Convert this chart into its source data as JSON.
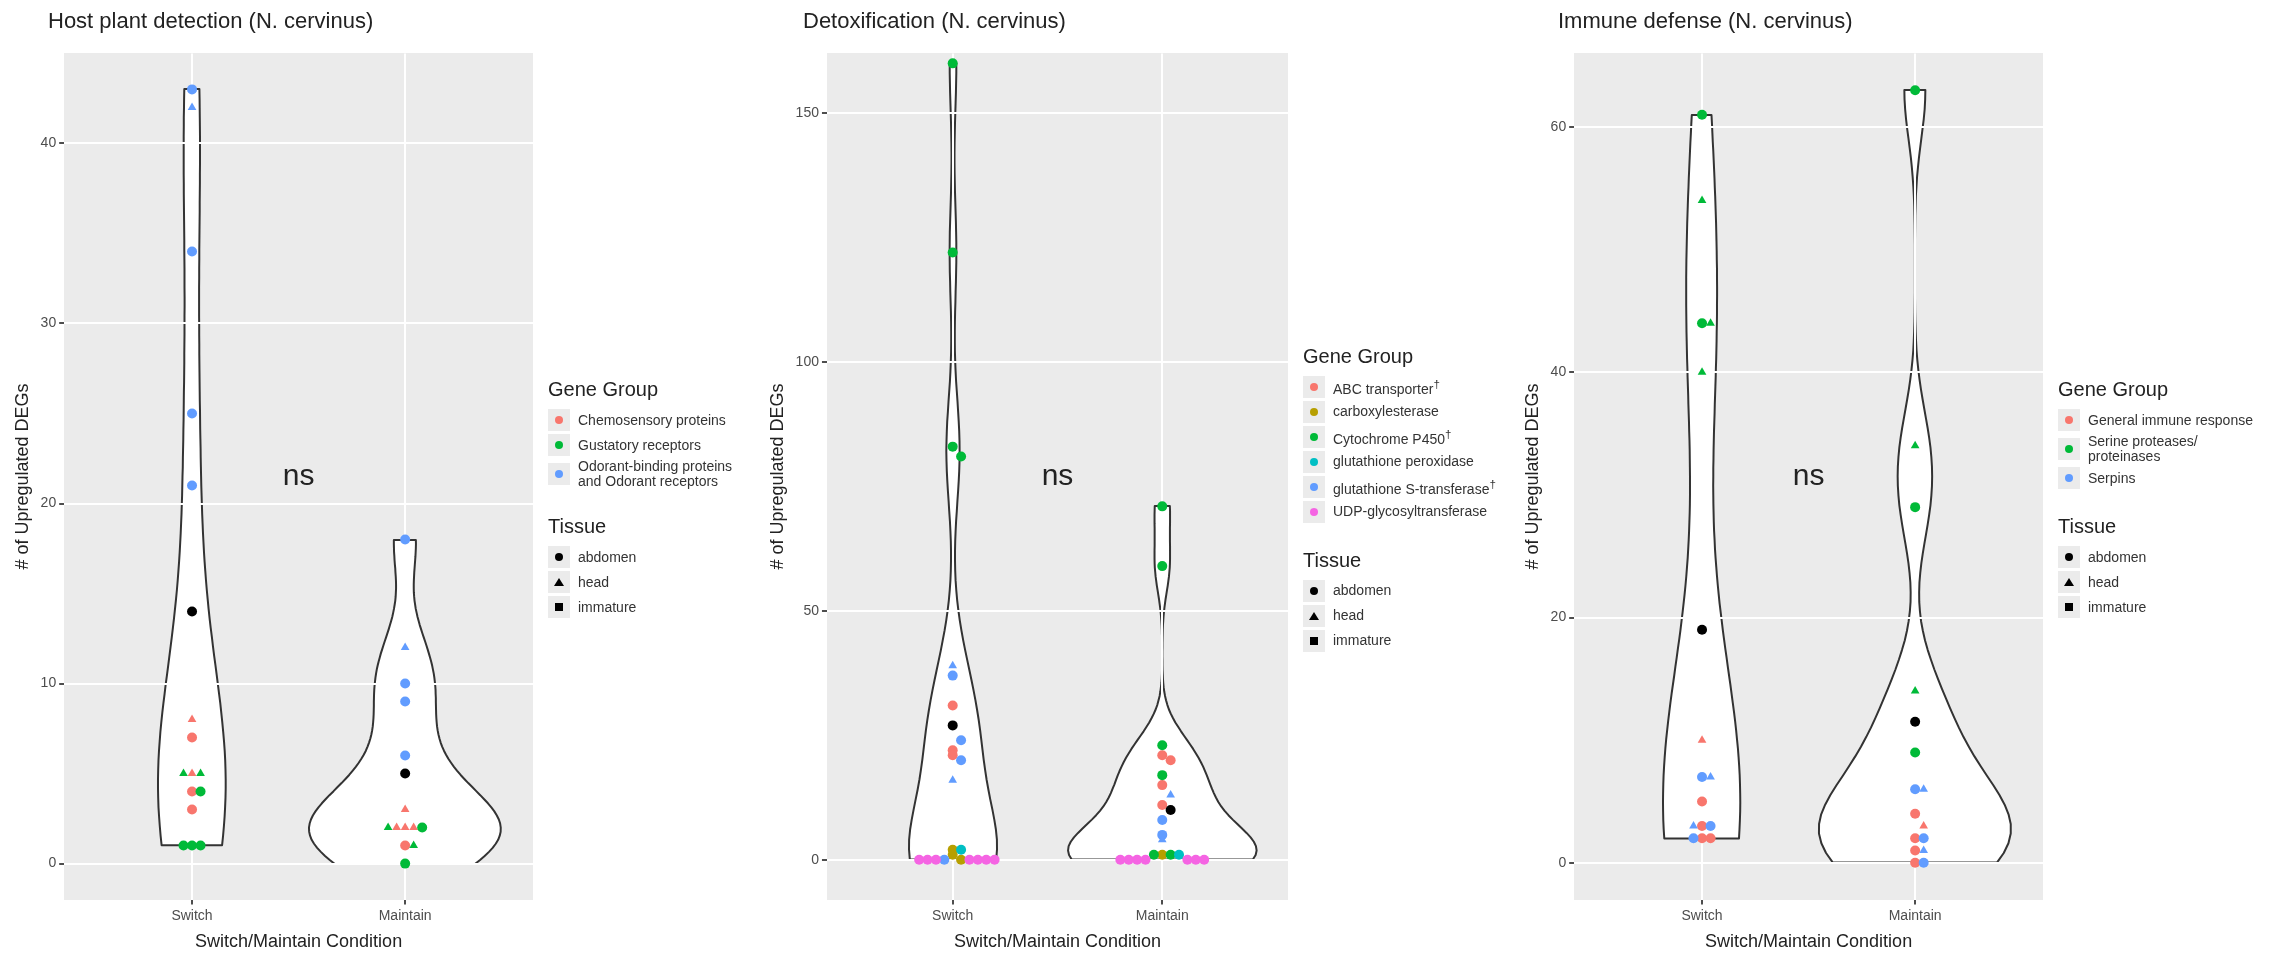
{
  "chart_data": [
    {
      "type": "scatter",
      "title": "Host plant detection (N. cervinus)",
      "xlabel": "Switch/Maintain Condition",
      "ylabel": "# of Upregulated DEGs",
      "legend_title": "Gene Group",
      "legend": "right",
      "grid": true,
      "marker": "circle",
      "categories": [
        "Switch",
        "Maintain"
      ],
      "ylim": [
        -2,
        45
      ],
      "yticks": [
        0,
        10,
        20,
        30,
        40
      ],
      "annotations": [
        "ns",
        "Tissue"
      ],
      "series": [
        {
          "name": "Chemosensory proteins",
          "color": "#f8766d",
          "x": [
            "Switch",
            "Switch",
            "Switch",
            "Maintain"
          ],
          "values": [
            7,
            4,
            3,
            1
          ]
        },
        {
          "color": "#f8766d",
          "marker": "triangle",
          "x": [
            "Switch",
            "Switch",
            "Maintain",
            "Maintain",
            "Maintain",
            "Maintain"
          ],
          "values": [
            8,
            5,
            3,
            2,
            2,
            2
          ]
        },
        {
          "name": "Gustatory receptors",
          "color": "#00ba38",
          "x": [
            "Switch",
            "Switch",
            "Switch",
            "Switch",
            "Maintain",
            "Maintain"
          ],
          "values": [
            4,
            1,
            1,
            1,
            2,
            0
          ]
        },
        {
          "color": "#00ba38",
          "marker": "triangle",
          "x": [
            "Switch",
            "Switch",
            "Maintain",
            "Maintain"
          ],
          "values": [
            5,
            5,
            2,
            1
          ]
        },
        {
          "name": "Odorant-binding proteins and Odorant receptors",
          "color": "#619cff",
          "x": [
            "Switch",
            "Switch",
            "Switch",
            "Switch",
            "Maintain",
            "Maintain",
            "Maintain",
            "Maintain"
          ],
          "values": [
            43,
            34,
            25,
            21,
            18,
            10,
            9,
            6
          ]
        },
        {
          "color": "#619cff",
          "marker": "triangle",
          "x": [
            "Switch",
            "Maintain"
          ],
          "values": [
            42,
            12
          ]
        },
        {
          "color": "#000000",
          "x": [
            "Switch",
            "Maintain"
          ],
          "values": [
            14,
            5
          ]
        },
        {
          "name": "abdomen",
          "color": "#000000",
          "values": [
            null,
            null
          ]
        },
        {
          "name": "head",
          "color": "#000000",
          "marker": "triangle",
          "values": [
            null,
            null
          ]
        },
        {
          "name": "immature",
          "color": "#000000",
          "marker": "square",
          "values": [
            null,
            null
          ]
        }
      ]
    },
    {
      "type": "scatter",
      "title": "Detoxification (N. cervinus)",
      "xlabel": "Switch/Maintain Condition",
      "ylabel": "# of Upregulated DEGs",
      "legend_title": "Gene Group",
      "legend": "right",
      "grid": true,
      "marker": "circle",
      "categories": [
        "Switch",
        "Maintain"
      ],
      "ylim": [
        -8,
        162
      ],
      "yticks": [
        0,
        50,
        100,
        150
      ],
      "annotations": [
        "ns",
        "Tissue"
      ],
      "series": [
        {
          "name": "ABC transporter$^{†}$",
          "color": "#f8766d",
          "x": [
            "Switch",
            "Switch",
            "Switch",
            "Maintain",
            "Maintain",
            "Maintain",
            "Maintain"
          ],
          "values": [
            31,
            22,
            21,
            21,
            20,
            15,
            11
          ]
        },
        {
          "name": "carboxylesterase",
          "color": "#b79f00",
          "x": [
            "Switch",
            "Switch",
            "Switch",
            "Maintain"
          ],
          "values": [
            1,
            0,
            2,
            1
          ]
        },
        {
          "name": "Cytochrome P450$^{†}$",
          "color": "#00ba38",
          "x": [
            "Switch",
            "Switch",
            "Switch",
            "Switch",
            "Maintain",
            "Maintain",
            "Maintain",
            "Maintain",
            "Maintain",
            "Maintain"
          ],
          "values": [
            160,
            122,
            83,
            81,
            71,
            59,
            23,
            17,
            1,
            1
          ]
        },
        {
          "name": "glutathione peroxidase",
          "color": "#00bfc4",
          "x": [
            "Switch",
            "Maintain"
          ],
          "values": [
            2,
            1
          ]
        },
        {
          "name": "glutathione S-transferase$^{†}$",
          "color": "#619cff",
          "x": [
            "Switch",
            "Switch",
            "Switch",
            "Maintain",
            "Maintain",
            "Switch"
          ],
          "values": [
            37,
            24,
            20,
            8,
            5,
            0
          ]
        },
        {
          "color": "#619cff",
          "marker": "triangle",
          "x": [
            "Switch",
            "Switch",
            "Maintain",
            "Maintain"
          ],
          "values": [
            39,
            16,
            13,
            4
          ]
        },
        {
          "name": "UDP-glycosyltransferase",
          "color": "#f564e3",
          "x": [
            "Switch",
            "Switch",
            "Switch",
            "Switch",
            "Switch",
            "Switch",
            "Switch",
            "Maintain",
            "Maintain",
            "Maintain",
            "Maintain",
            "Maintain",
            "Maintain",
            "Maintain"
          ],
          "values": [
            0,
            0,
            0,
            0,
            0,
            0,
            0,
            0,
            0,
            0,
            0,
            0,
            0,
            0
          ]
        },
        {
          "color": "#000000",
          "x": [
            "Switch",
            "Maintain"
          ],
          "values": [
            27,
            10
          ]
        },
        {
          "name": "abdomen",
          "color": "#000000",
          "values": [
            null,
            null
          ]
        },
        {
          "name": "head",
          "color": "#000000",
          "marker": "triangle",
          "values": [
            null,
            null
          ]
        },
        {
          "name": "immature",
          "color": "#000000",
          "marker": "square",
          "values": [
            null,
            null
          ]
        }
      ]
    },
    {
      "type": "scatter",
      "title": "Immune defense (N. cervinus)",
      "xlabel": "Switch/Maintain Condition",
      "ylabel": "# of Upregulated DEGs",
      "legend_title": "Gene Group",
      "legend": "right",
      "grid": true,
      "marker": "circle",
      "categories": [
        "Switch",
        "Maintain"
      ],
      "ylim": [
        -3,
        66
      ],
      "yticks": [
        0,
        20,
        40,
        60
      ],
      "annotations": [
        "ns",
        "Tissue"
      ],
      "series": [
        {
          "name": "General immune response",
          "color": "#f8766d",
          "x": [
            "Switch",
            "Switch",
            "Switch",
            "Switch",
            "Maintain",
            "Maintain",
            "Maintain",
            "Maintain"
          ],
          "values": [
            5,
            3,
            2,
            2,
            4,
            2,
            1,
            0
          ]
        },
        {
          "color": "#f8766d",
          "marker": "triangle",
          "x": [
            "Switch",
            "Maintain"
          ],
          "values": [
            10,
            3
          ]
        },
        {
          "name": "Serine proteases/ proteinases",
          "color": "#00ba38",
          "x": [
            "Switch",
            "Switch",
            "Maintain",
            "Maintain",
            "Maintain"
          ],
          "values": [
            61,
            44,
            63,
            29,
            9
          ]
        },
        {
          "color": "#00ba38",
          "marker": "triangle",
          "x": [
            "Switch",
            "Switch",
            "Switch",
            "Maintain",
            "Maintain"
          ],
          "values": [
            54,
            44,
            40,
            34,
            14
          ]
        },
        {
          "name": "Serpins",
          "color": "#619cff",
          "x": [
            "Switch",
            "Switch",
            "Switch",
            "Maintain",
            "Maintain",
            "Maintain"
          ],
          "values": [
            7,
            3,
            2,
            6,
            2,
            0
          ]
        },
        {
          "color": "#619cff",
          "marker": "triangle",
          "x": [
            "Switch",
            "Switch",
            "Maintain",
            "Maintain"
          ],
          "values": [
            7,
            3,
            6,
            1
          ]
        },
        {
          "color": "#000000",
          "x": [
            "Switch",
            "Maintain"
          ],
          "values": [
            19,
            11.5
          ]
        },
        {
          "name": "abdomen",
          "color": "#000000",
          "values": [
            null,
            null
          ]
        },
        {
          "name": "head",
          "color": "#000000",
          "marker": "triangle",
          "values": [
            null,
            null
          ]
        },
        {
          "name": "immature",
          "color": "#000000",
          "marker": "square",
          "values": [
            null,
            null
          ]
        }
      ]
    }
  ]
}
